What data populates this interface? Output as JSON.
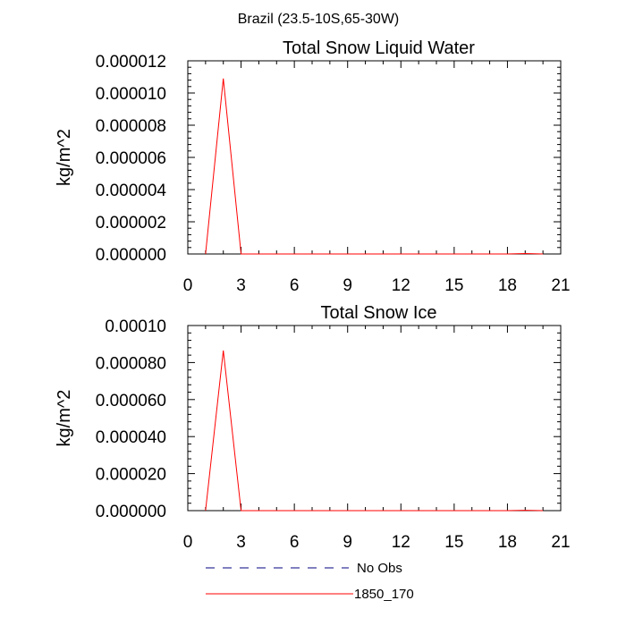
{
  "figure_title": "Brazil (23.5-10S,65-30W)",
  "colors": {
    "series_1850_170": "#ff0000",
    "no_obs": "#000080",
    "axes": "#000000"
  },
  "legend": [
    {
      "label": "No Obs",
      "style": "dashed",
      "color": "#000080"
    },
    {
      "label": "1850_170",
      "style": "solid",
      "color": "#ff0000"
    }
  ],
  "chart_data": [
    {
      "type": "line",
      "title": "Total Snow Liquid Water",
      "xlabel": "",
      "ylabel": "kg/m^2",
      "xlim": [
        0,
        21
      ],
      "ylim": [
        0,
        1.2e-05
      ],
      "xticks": [
        "0",
        "3",
        "6",
        "9",
        "12",
        "15",
        "18",
        "21"
      ],
      "yticks": [
        "0.000000",
        "0.000002",
        "0.000004",
        "0.000006",
        "0.000008",
        "0.000010",
        "0.000012"
      ],
      "series": [
        {
          "name": "1850_170",
          "x": [
            1,
            2,
            3,
            4,
            5,
            6,
            7,
            8,
            9,
            10,
            11,
            12,
            13,
            14,
            15,
            16,
            17,
            18,
            19,
            20
          ],
          "values": [
            0,
            1.09e-05,
            0,
            0,
            0,
            0,
            0,
            0,
            0,
            0,
            0,
            0,
            0,
            0,
            0,
            0,
            0,
            0,
            3e-08,
            0
          ]
        }
      ]
    },
    {
      "type": "line",
      "title": "Total Snow Ice",
      "xlabel": "",
      "ylabel": "kg/m^2",
      "xlim": [
        0,
        21
      ],
      "ylim": [
        0,
        0.0001
      ],
      "xticks": [
        "0",
        "3",
        "6",
        "9",
        "12",
        "15",
        "18",
        "21"
      ],
      "yticks": [
        "0.000000",
        "0.000020",
        "0.000040",
        "0.000060",
        "0.000080",
        "0.00010"
      ],
      "series": [
        {
          "name": "1850_170",
          "x": [
            1,
            2,
            3,
            4,
            5,
            6,
            7,
            8,
            9,
            10,
            11,
            12,
            13,
            14,
            15,
            16,
            17,
            18,
            19,
            20
          ],
          "values": [
            0,
            8.65e-05,
            0,
            0,
            0,
            0,
            0,
            0,
            0,
            0,
            0,
            0,
            0,
            0,
            0,
            0,
            0,
            0,
            2e-07,
            0
          ]
        }
      ]
    }
  ]
}
